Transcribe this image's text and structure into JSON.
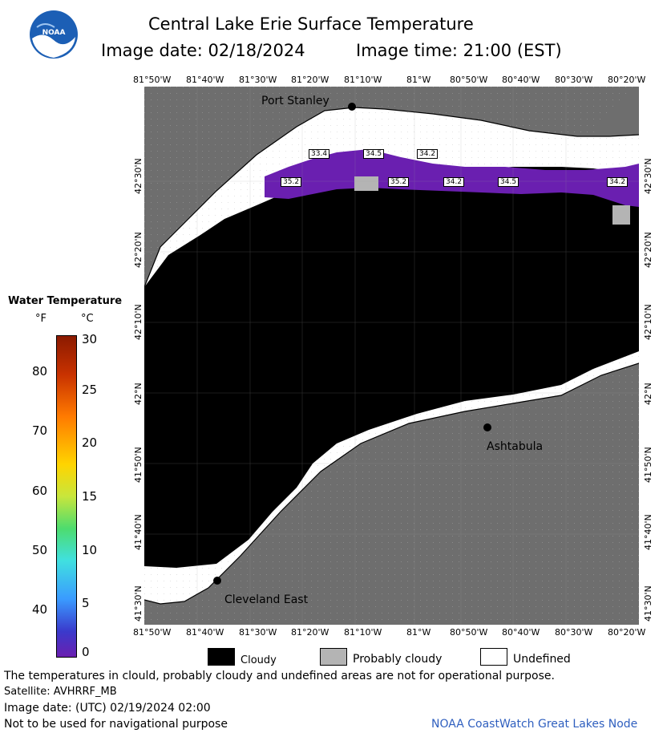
{
  "header": {
    "title": "Central Lake Erie Surface Temperature",
    "image_date": "Image date: 02/18/2024",
    "image_time": "Image time: 21:00 (EST)",
    "logo_text": "NOAA"
  },
  "longitudes": [
    "81°50'W",
    "81°40'W",
    "81°30'W",
    "81°20'W",
    "81°10'W",
    "81°W",
    "80°50'W",
    "80°40'W",
    "80°30'W",
    "80°20'W"
  ],
  "latitudes": [
    "42°30'N",
    "42°20'N",
    "42°10'N",
    "42°N",
    "41°50'N",
    "41°40'N",
    "41°30'N"
  ],
  "places": {
    "port_stanley": "Port Stanley",
    "ashtabula": "Ashtabula",
    "cleveland_east": "Cleveland East"
  },
  "temperature_labels": [
    "33.4",
    "34.5",
    "34.2",
    "35.2",
    "35.2",
    "34.2",
    "34.5",
    "34.2"
  ],
  "scale": {
    "title": "Water Temperature",
    "unit_f": "°F",
    "unit_c": "°C",
    "f_ticks": [
      "80",
      "70",
      "60",
      "50",
      "40"
    ],
    "c_ticks": [
      "30",
      "25",
      "20",
      "15",
      "10",
      "5",
      "0"
    ]
  },
  "legend": {
    "cloudy": "Cloudy",
    "probably_cloudy": "Probably cloudy",
    "undefined": "Undefined",
    "colors": {
      "cloudy": "#000000",
      "probably_cloudy": "#b4b4b4",
      "undefined": "#ffffff"
    }
  },
  "footer": {
    "disclaimer": "The temperatures in clould, probably cloudy and undefined areas are not for operational purpose.",
    "satellite": "Satellite: AVHRRF_MB",
    "utc_date": "Image date: (UTC) 02/19/2024  02:00",
    "nav_warning": "Not to be used for navigational purpose",
    "credit": "NOAA CoastWatch Great Lakes Node"
  },
  "colors": {
    "land": "#6e6e6e",
    "lake_cloud": "#000000",
    "water_purple": "#6a1fb0",
    "credit": "#2f5fbf"
  }
}
